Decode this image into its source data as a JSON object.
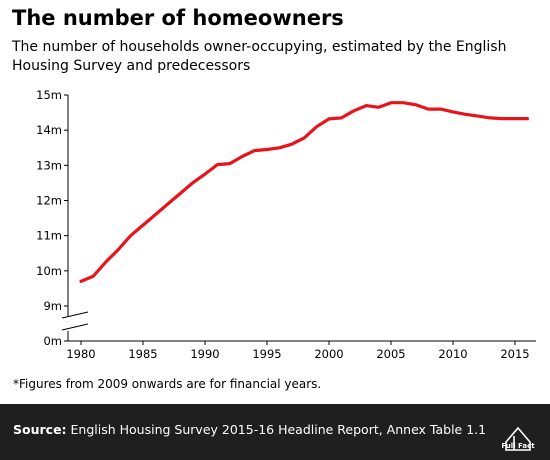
{
  "title": "The number of homeowners",
  "subtitle": "The number of households owner-occupying, estimated by the English Housing Survey and predecessors",
  "footnote": "*Figures from 2009 onwards are for financial years.",
  "source": {
    "label": "Source:",
    "text": "English Housing Survey 2015-16 Headline Report, Annex Table 1.1"
  },
  "logo": {
    "text": "Full Fact",
    "icon": "full-fact-logo"
  },
  "colors": {
    "line": "#e8141b",
    "footer_bg": "#1f1f1f",
    "text": "#000000"
  },
  "chart_data": {
    "type": "line",
    "title": "",
    "xlabel": "",
    "ylabel": "",
    "x_ticks": [
      1980,
      1985,
      1990,
      1995,
      2000,
      2005,
      2010,
      2015
    ],
    "y_ticks": [
      {
        "value": 0,
        "label": "0m"
      },
      {
        "value": 9,
        "label": "9m"
      },
      {
        "value": 10,
        "label": "10m"
      },
      {
        "value": 11,
        "label": "11m"
      },
      {
        "value": 12,
        "label": "12m"
      },
      {
        "value": 13,
        "label": "13m"
      },
      {
        "value": 14,
        "label": "14m"
      },
      {
        "value": 15,
        "label": "15m"
      }
    ],
    "y_axis_break": [
      0,
      9
    ],
    "xlim": [
      1979.5,
      2016.5
    ],
    "grid": false,
    "series": [
      {
        "x": [
          1980,
          1981,
          1982,
          1983,
          1984,
          1985,
          1986,
          1987,
          1988,
          1989,
          1990,
          1991,
          1992,
          1993,
          1994,
          1995,
          1996,
          1997,
          1998,
          1999,
          2000,
          2001,
          2002,
          2003,
          2004,
          2005,
          2006,
          2007,
          2008,
          2009,
          2010,
          2011,
          2012,
          2013,
          2014,
          2015,
          2016
        ],
        "values": [
          9.7,
          9.85,
          10.25,
          10.6,
          11.0,
          11.3,
          11.6,
          11.9,
          12.2,
          12.5,
          12.75,
          13.02,
          13.05,
          13.25,
          13.42,
          13.45,
          13.5,
          13.6,
          13.78,
          14.1,
          14.32,
          14.35,
          14.55,
          14.7,
          14.65,
          14.78,
          14.78,
          14.72,
          14.6,
          14.6,
          14.52,
          14.45,
          14.4,
          14.35,
          14.33,
          14.33,
          14.33
        ]
      }
    ]
  }
}
